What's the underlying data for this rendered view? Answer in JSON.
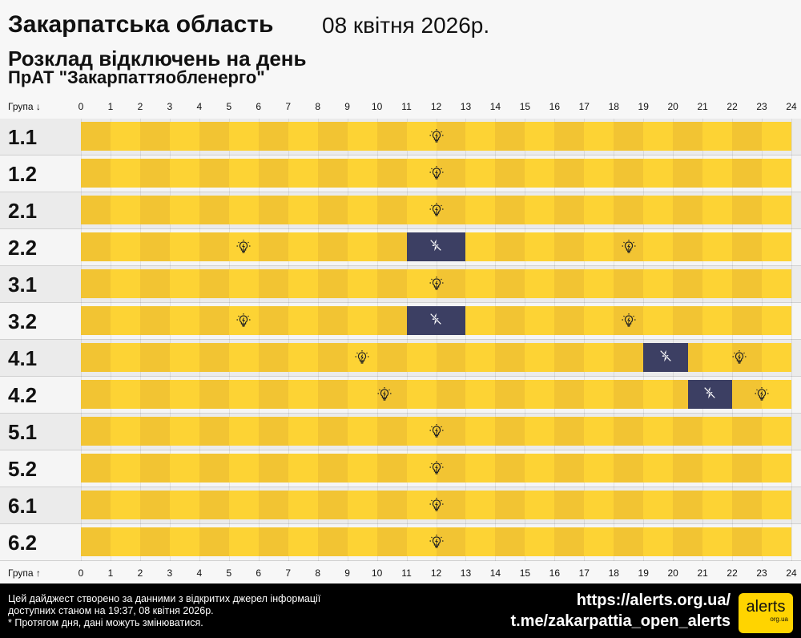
{
  "header": {
    "region": "Закарпатська область",
    "date": "08 квітня 2026р.",
    "subtitle": "Розклад відключень на день",
    "company": "ПрАТ \"Закарпаттяобленерго\""
  },
  "axis": {
    "label_top": "Група ↓",
    "label_bottom": "Група ↑",
    "hours": [
      "0",
      "1",
      "2",
      "3",
      "4",
      "5",
      "6",
      "7",
      "8",
      "9",
      "10",
      "11",
      "12",
      "13",
      "14",
      "15",
      "16",
      "17",
      "18",
      "19",
      "20",
      "21",
      "22",
      "23",
      "24"
    ]
  },
  "colors": {
    "on_dark": "#f2c433",
    "on_light": "#fdd334",
    "off": "#3c3f63",
    "row_odd": "#ebebeb",
    "row_even": "#f5f5f5"
  },
  "groups": [
    {
      "name": "1.1",
      "outages": []
    },
    {
      "name": "1.2",
      "outages": []
    },
    {
      "name": "2.1",
      "outages": []
    },
    {
      "name": "2.2",
      "outages": [
        [
          11,
          13
        ]
      ]
    },
    {
      "name": "3.1",
      "outages": []
    },
    {
      "name": "3.2",
      "outages": [
        [
          11,
          13
        ]
      ]
    },
    {
      "name": "4.1",
      "outages": [
        [
          19,
          20.5
        ]
      ]
    },
    {
      "name": "4.2",
      "outages": [
        [
          20.5,
          22
        ]
      ]
    },
    {
      "name": "5.1",
      "outages": []
    },
    {
      "name": "5.2",
      "outages": []
    },
    {
      "name": "6.1",
      "outages": []
    },
    {
      "name": "6.2",
      "outages": []
    }
  ],
  "footer": {
    "note1": "Цей дайджест створено за данними з відкритих джерел інформації",
    "note2": "доступних станом на 19:37, 08 квітня 2026р.",
    "note3": "* Протягом дня, дані можуть змінюватися.",
    "link1": "https://alerts.org.ua/",
    "link2": "t.me/zakarpattia_open_alerts",
    "logo_text": "alerts",
    "logo_sub": "org.ua"
  }
}
